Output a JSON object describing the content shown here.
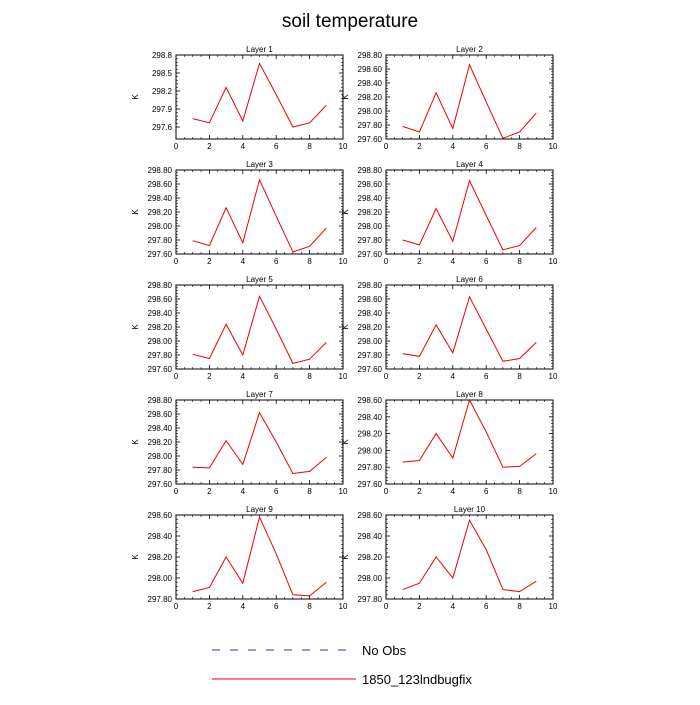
{
  "figure": {
    "title": "soil temperature"
  },
  "legend": {
    "placement": "bottom",
    "entries": [
      {
        "label": "No Obs",
        "color": "#3333aa",
        "style": "dashed"
      },
      {
        "label": "1850_123lndbugfix",
        "color": "#ee0000",
        "style": "solid"
      }
    ]
  },
  "chart_data": [
    {
      "type": "line",
      "title": "Layer 1",
      "ylabel": "K",
      "xlim": [
        0,
        10
      ],
      "ylim": [
        297.4,
        298.8
      ],
      "xticks": [
        0,
        2,
        4,
        6,
        8,
        10
      ],
      "yticks": [
        297.6,
        297.9,
        298.2,
        298.5,
        298.8
      ],
      "ytick_labels": [
        "297.6",
        "297.9",
        "298.2",
        "298.5",
        "298.8"
      ],
      "x": [
        1,
        2,
        3,
        4,
        5,
        6,
        7,
        8,
        9
      ],
      "series": [
        {
          "name": "1850_123lndbugfix",
          "color": "#ee0000",
          "values": [
            297.74,
            297.67,
            298.26,
            297.7,
            298.66,
            298.14,
            297.6,
            297.67,
            297.96
          ]
        }
      ]
    },
    {
      "type": "line",
      "title": "Layer 2",
      "ylabel": "K",
      "xlim": [
        0,
        10
      ],
      "ylim": [
        297.6,
        298.8
      ],
      "xticks": [
        0,
        2,
        4,
        6,
        8,
        10
      ],
      "yticks": [
        297.6,
        297.8,
        298.0,
        298.2,
        298.4,
        298.6,
        298.8
      ],
      "ytick_labels": [
        "297.60",
        "297.80",
        "298.00",
        "298.20",
        "298.40",
        "298.60",
        "298.80"
      ],
      "x": [
        1,
        2,
        3,
        4,
        5,
        6,
        7,
        8,
        9
      ],
      "series": [
        {
          "name": "1850_123lndbugfix",
          "color": "#ee0000",
          "values": [
            297.78,
            297.7,
            298.26,
            297.75,
            298.66,
            298.13,
            297.61,
            297.7,
            297.97
          ]
        }
      ]
    },
    {
      "type": "line",
      "title": "Layer 3",
      "ylabel": "K",
      "xlim": [
        0,
        10
      ],
      "ylim": [
        297.6,
        298.8
      ],
      "xticks": [
        0,
        2,
        4,
        6,
        8,
        10
      ],
      "yticks": [
        297.6,
        297.8,
        298.0,
        298.2,
        298.4,
        298.6,
        298.8
      ],
      "ytick_labels": [
        "297.60",
        "297.80",
        "298.00",
        "298.20",
        "298.40",
        "298.60",
        "298.80"
      ],
      "x": [
        1,
        2,
        3,
        4,
        5,
        6,
        7,
        8,
        9
      ],
      "series": [
        {
          "name": "1850_123lndbugfix",
          "color": "#ee0000",
          "values": [
            297.79,
            297.72,
            298.26,
            297.76,
            298.66,
            298.14,
            297.63,
            297.71,
            297.97
          ]
        }
      ]
    },
    {
      "type": "line",
      "title": "Layer 4",
      "ylabel": "K",
      "xlim": [
        0,
        10
      ],
      "ylim": [
        297.6,
        298.8
      ],
      "xticks": [
        0,
        2,
        4,
        6,
        8,
        10
      ],
      "yticks": [
        297.6,
        297.8,
        298.0,
        298.2,
        298.4,
        298.6,
        298.8
      ],
      "ytick_labels": [
        "297.60",
        "297.80",
        "298.00",
        "298.20",
        "298.40",
        "298.60",
        "298.80"
      ],
      "x": [
        1,
        2,
        3,
        4,
        5,
        6,
        7,
        8,
        9
      ],
      "series": [
        {
          "name": "1850_123lndbugfix",
          "color": "#ee0000",
          "values": [
            297.8,
            297.73,
            298.25,
            297.78,
            298.65,
            298.15,
            297.66,
            297.72,
            297.98
          ]
        }
      ]
    },
    {
      "type": "line",
      "title": "Layer 5",
      "ylabel": "K",
      "xlim": [
        0,
        10
      ],
      "ylim": [
        297.6,
        298.8
      ],
      "xticks": [
        0,
        2,
        4,
        6,
        8,
        10
      ],
      "yticks": [
        297.6,
        297.8,
        298.0,
        298.2,
        298.4,
        298.6,
        298.8
      ],
      "ytick_labels": [
        "297.60",
        "297.80",
        "298.00",
        "298.20",
        "298.40",
        "298.60",
        "298.80"
      ],
      "x": [
        1,
        2,
        3,
        4,
        5,
        6,
        7,
        8,
        9
      ],
      "series": [
        {
          "name": "1850_123lndbugfix",
          "color": "#ee0000",
          "values": [
            297.81,
            297.75,
            298.24,
            297.8,
            298.64,
            298.17,
            297.68,
            297.74,
            297.98
          ]
        }
      ]
    },
    {
      "type": "line",
      "title": "Layer 6",
      "ylabel": "K",
      "xlim": [
        0,
        10
      ],
      "ylim": [
        297.6,
        298.8
      ],
      "xticks": [
        0,
        2,
        4,
        6,
        8,
        10
      ],
      "yticks": [
        297.6,
        297.8,
        298.0,
        298.2,
        298.4,
        298.6,
        298.8
      ],
      "ytick_labels": [
        "297.60",
        "297.80",
        "298.00",
        "298.20",
        "298.40",
        "298.60",
        "298.80"
      ],
      "x": [
        1,
        2,
        3,
        4,
        5,
        6,
        7,
        8,
        9
      ],
      "series": [
        {
          "name": "1850_123lndbugfix",
          "color": "#ee0000",
          "values": [
            297.82,
            297.78,
            298.23,
            297.83,
            298.63,
            298.17,
            297.71,
            297.75,
            297.98
          ]
        }
      ]
    },
    {
      "type": "line",
      "title": "Layer 7",
      "ylabel": "K",
      "xlim": [
        0,
        10
      ],
      "ylim": [
        297.6,
        298.8
      ],
      "xticks": [
        0,
        2,
        4,
        6,
        8,
        10
      ],
      "yticks": [
        297.6,
        297.8,
        298.0,
        298.2,
        298.4,
        298.6,
        298.8
      ],
      "ytick_labels": [
        "297.60",
        "297.80",
        "298.00",
        "298.20",
        "298.40",
        "298.60",
        "298.80"
      ],
      "x": [
        1,
        2,
        3,
        4,
        5,
        6,
        7,
        8,
        9
      ],
      "series": [
        {
          "name": "1850_123lndbugfix",
          "color": "#ee0000",
          "values": [
            297.84,
            297.83,
            298.22,
            297.88,
            298.62,
            298.2,
            297.75,
            297.78,
            297.98
          ]
        }
      ]
    },
    {
      "type": "line",
      "title": "Layer 8",
      "ylabel": "K",
      "xlim": [
        0,
        10
      ],
      "ylim": [
        297.6,
        298.6
      ],
      "xticks": [
        0,
        2,
        4,
        6,
        8,
        10
      ],
      "yticks": [
        297.6,
        297.8,
        298.0,
        298.2,
        298.4,
        298.6
      ],
      "ytick_labels": [
        "297.60",
        "297.80",
        "298.00",
        "298.20",
        "298.40",
        "298.60"
      ],
      "x": [
        1,
        2,
        3,
        4,
        5,
        6,
        7,
        8,
        9
      ],
      "series": [
        {
          "name": "1850_123lndbugfix",
          "color": "#ee0000",
          "values": [
            297.86,
            297.88,
            298.2,
            297.91,
            298.6,
            298.22,
            297.8,
            297.81,
            297.96
          ]
        }
      ]
    },
    {
      "type": "line",
      "title": "Layer 9",
      "ylabel": "K",
      "xlim": [
        0,
        10
      ],
      "ylim": [
        297.8,
        298.6
      ],
      "xticks": [
        0,
        2,
        4,
        6,
        8,
        10
      ],
      "yticks": [
        297.8,
        298.0,
        298.2,
        298.4,
        298.6
      ],
      "ytick_labels": [
        "297.80",
        "298.00",
        "298.20",
        "298.40",
        "298.60"
      ],
      "x": [
        1,
        2,
        3,
        4,
        5,
        6,
        7,
        8,
        9
      ],
      "series": [
        {
          "name": "1850_123lndbugfix",
          "color": "#ee0000",
          "values": [
            297.87,
            297.91,
            298.2,
            297.95,
            298.58,
            298.23,
            297.84,
            297.83,
            297.96
          ]
        }
      ]
    },
    {
      "type": "line",
      "title": "Layer 10",
      "ylabel": "K",
      "xlim": [
        0,
        10
      ],
      "ylim": [
        297.8,
        298.6
      ],
      "xticks": [
        0,
        2,
        4,
        6,
        8,
        10
      ],
      "yticks": [
        297.8,
        298.0,
        298.2,
        298.4,
        298.6
      ],
      "ytick_labels": [
        "297.80",
        "298.00",
        "298.20",
        "298.40",
        "298.60"
      ],
      "x": [
        1,
        2,
        3,
        4,
        5,
        6,
        7,
        8,
        9
      ],
      "series": [
        {
          "name": "1850_123lndbugfix",
          "color": "#ee0000",
          "values": [
            297.89,
            297.95,
            298.2,
            298.0,
            298.55,
            298.27,
            297.89,
            297.87,
            297.97
          ]
        }
      ]
    }
  ]
}
